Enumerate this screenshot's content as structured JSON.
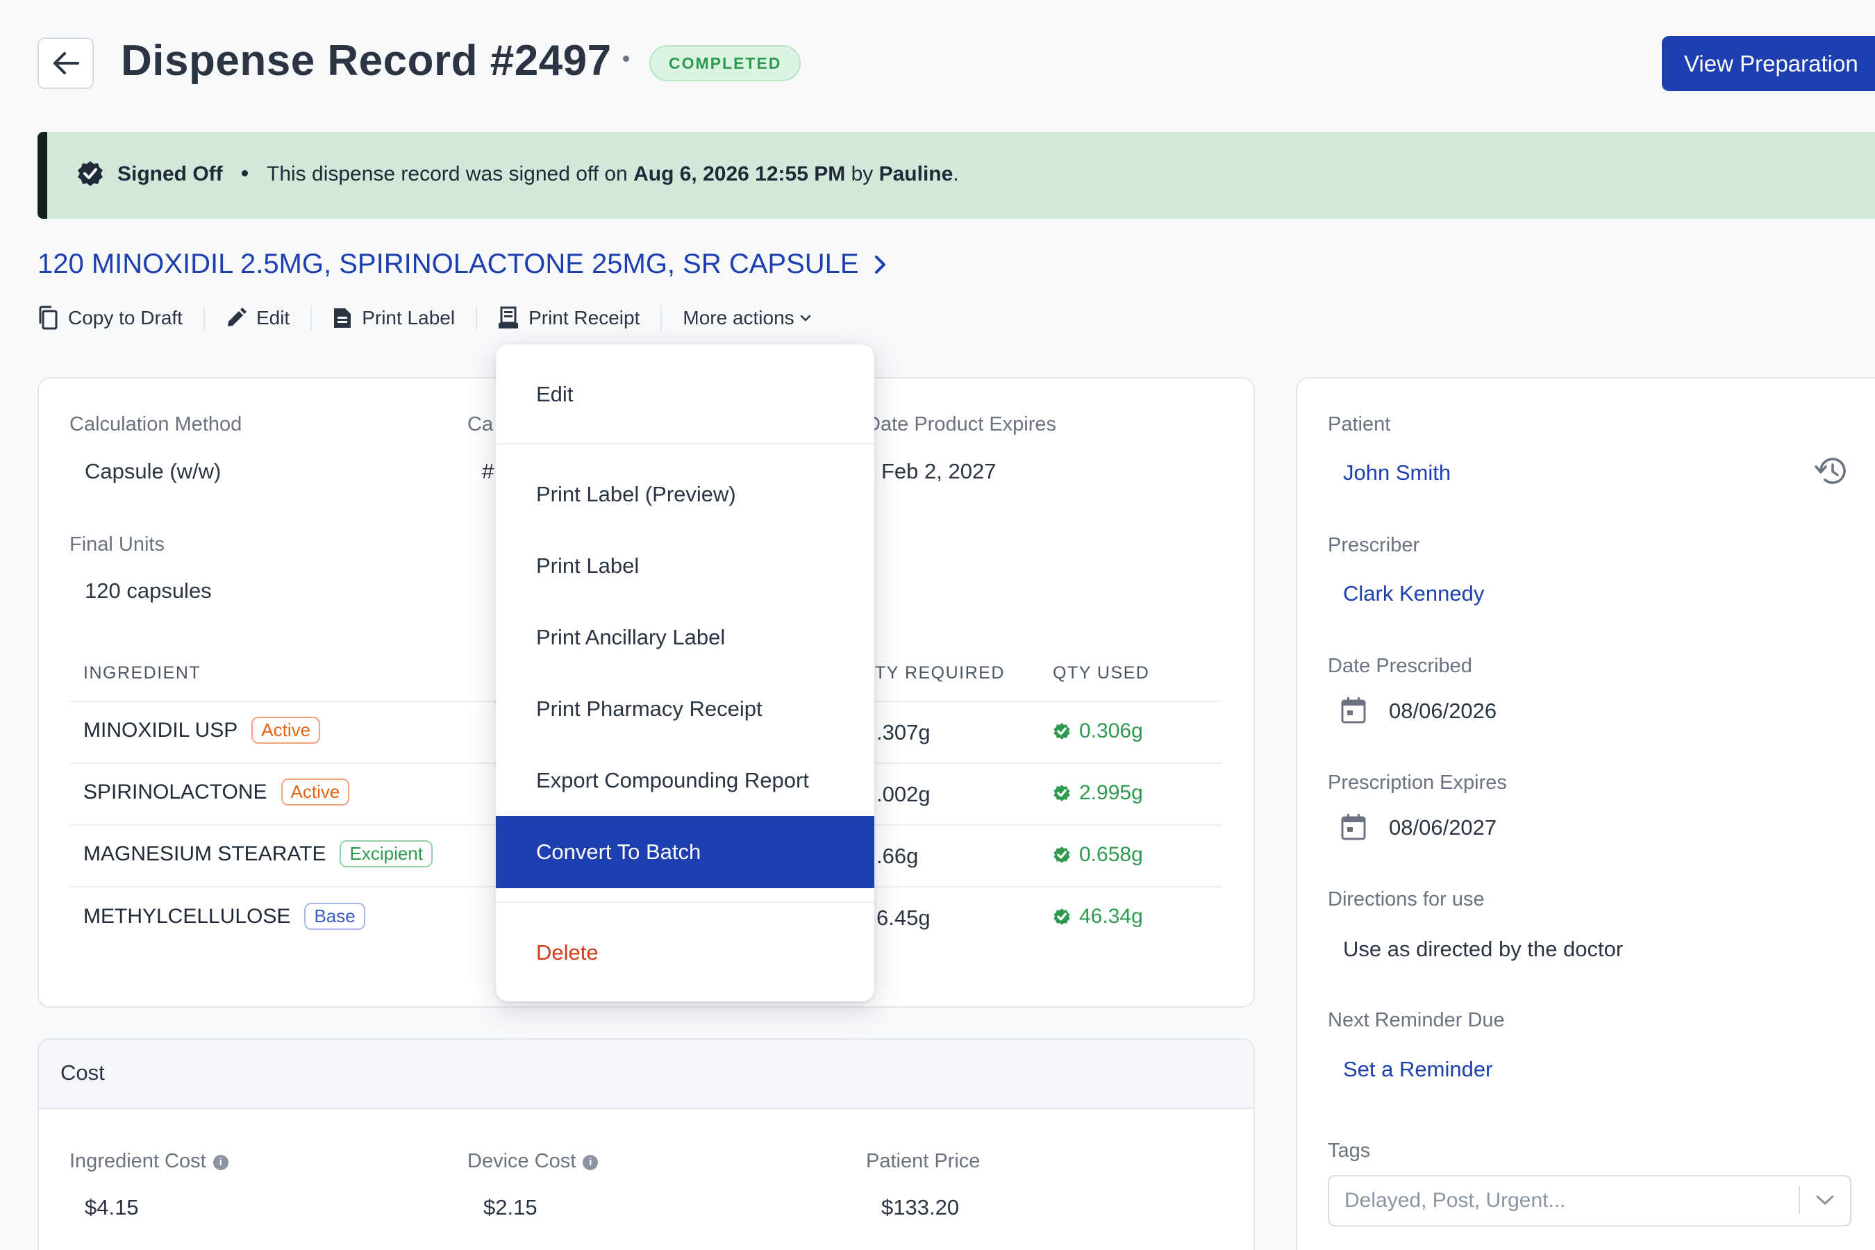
{
  "header": {
    "title": "Dispense Record #2497",
    "status": "COMPLETED",
    "view_preparation": "View Preparation"
  },
  "banner": {
    "title": "Signed Off",
    "text_pre": "This dispense record was signed off on ",
    "date": "Aug 6, 2026 12:55 PM",
    "text_by": " by ",
    "user": "Pauline",
    "text_end": "."
  },
  "product": {
    "name": "120 MINOXIDIL 2.5MG, SPIRINOLACTONE 25MG, SR CAPSULE"
  },
  "toolbar": {
    "copy_to_draft": "Copy to Draft",
    "edit": "Edit",
    "print_label": "Print Label",
    "print_receipt": "Print Receipt",
    "more_actions": "More actions"
  },
  "details": {
    "calc_method_label": "Calculation Method",
    "calc_method_value": "Capsule (w/w)",
    "calc_partial_label": "Ca",
    "calc_partial_value": "#",
    "expires_label": "Date Product Expires",
    "expires_value": "Feb 2, 2027",
    "final_units_label": "Final Units",
    "final_units_value": "120 capsules"
  },
  "ingredients": {
    "headers": {
      "ingredient": "INGREDIENT",
      "qty_required": "TY REQUIRED",
      "qty_used": "QTY USED"
    },
    "rows": [
      {
        "name": "MINOXIDIL USP",
        "tag": "Active",
        "required": ".307g",
        "used": "0.306g"
      },
      {
        "name": "SPIRINOLACTONE",
        "tag": "Active",
        "required": ".002g",
        "used": "2.995g"
      },
      {
        "name": "MAGNESIUM STEARATE",
        "tag": "Excipient",
        "required": ".66g",
        "used": "0.658g"
      },
      {
        "name": "METHYLCELLULOSE",
        "tag": "Base",
        "required": "6.45g",
        "used": "46.34g"
      }
    ]
  },
  "cost": {
    "title": "Cost",
    "ingredient_cost_label": "Ingredient Cost",
    "ingredient_cost_value": "$4.15",
    "device_cost_label": "Device Cost",
    "device_cost_value": "$2.15",
    "patient_price_label": "Patient Price",
    "patient_price_value": "$133.20"
  },
  "sidebar": {
    "patient_label": "Patient",
    "patient_value": "John Smith",
    "prescriber_label": "Prescriber",
    "prescriber_value": "Clark Kennedy",
    "date_prescribed_label": "Date Prescribed",
    "date_prescribed_value": "08/06/2026",
    "rx_expires_label": "Prescription Expires",
    "rx_expires_value": "08/06/2027",
    "directions_label": "Directions for use",
    "directions_value": "Use as directed by the doctor",
    "reminder_label": "Next Reminder Due",
    "reminder_value": "Set a Reminder",
    "tags_label": "Tags",
    "tags_placeholder": "Delayed, Post, Urgent..."
  },
  "menu": {
    "items": [
      "Edit",
      "Print Label (Preview)",
      "Print Label",
      "Print Ancillary Label",
      "Print Pharmacy Receipt",
      "Export Compounding Report",
      "Convert To Batch",
      "Delete"
    ],
    "selected": "Convert To Batch"
  },
  "colors": {
    "primary": "#1d3fb0",
    "success": "#2e9a50",
    "banner_bg": "#d2e9da",
    "danger": "#d23a1c",
    "active_tag": "#e36414"
  }
}
